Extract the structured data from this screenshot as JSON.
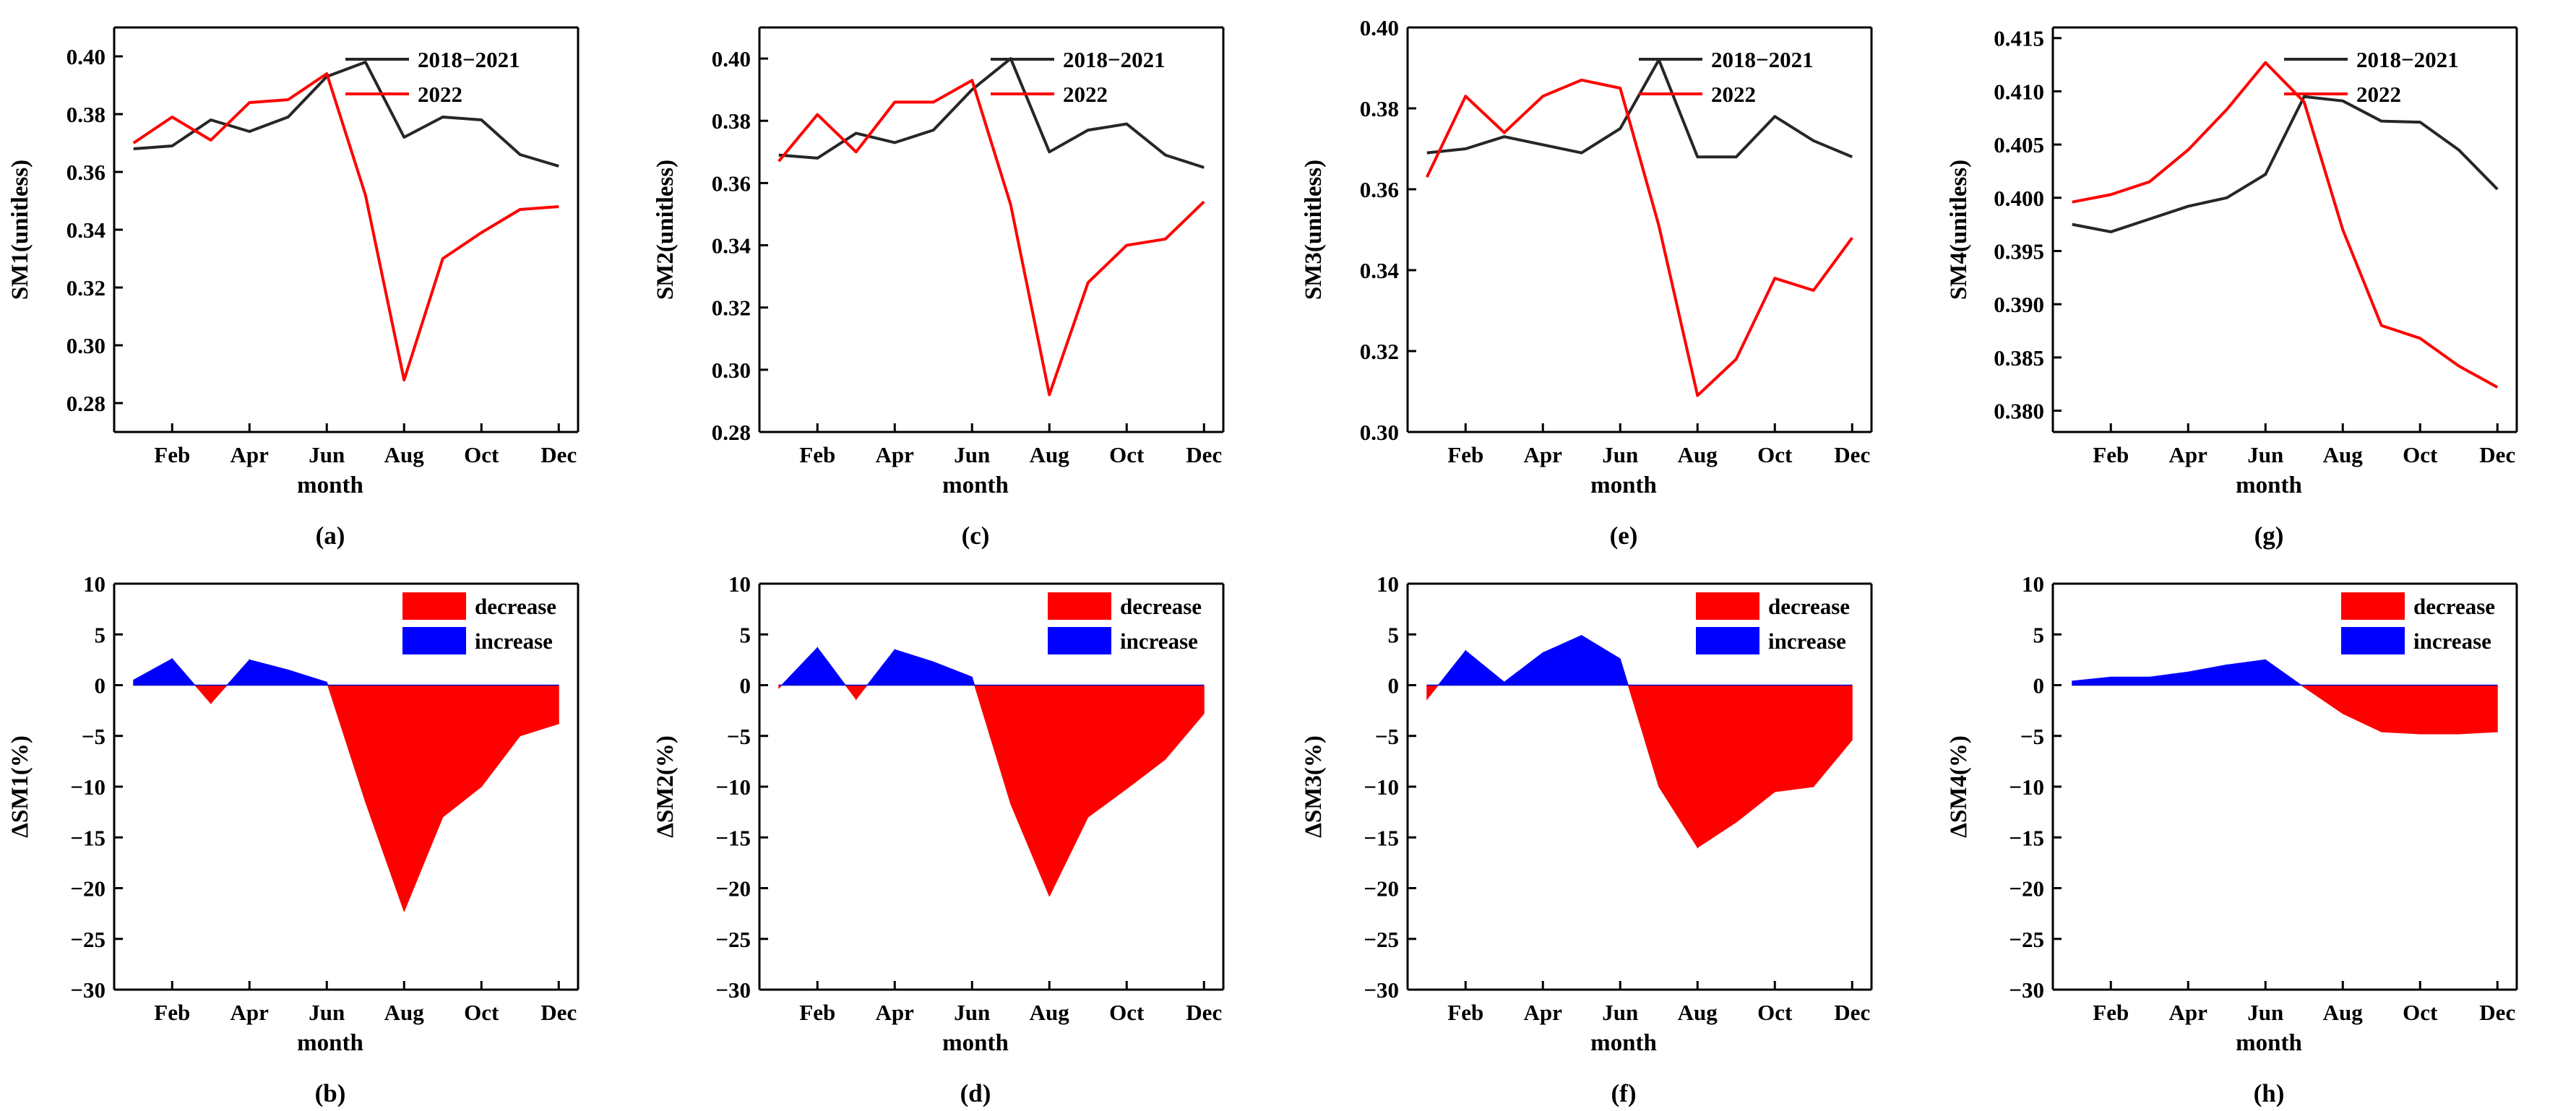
{
  "figure": {
    "x_axis_title": "month",
    "month_tick_labels": [
      "Feb",
      "Apr",
      "Jun",
      "Aug",
      "Oct",
      "Dec"
    ],
    "line_legend": [
      "2018−2021",
      "2022"
    ],
    "delta_legend": [
      "decrease",
      "increase"
    ],
    "colors": {
      "baseline": "#262626",
      "year2022": "#ff0000",
      "decrease": "#ff0000",
      "increase": "#0000ff",
      "axis": "#000000"
    }
  },
  "chart_data": [
    {
      "panel": "(a)",
      "type": "line",
      "ylabel": "SM1(unitless)",
      "xlabel": "month",
      "x": [
        1,
        2,
        3,
        4,
        5,
        6,
        7,
        8,
        9,
        10,
        11,
        12
      ],
      "xticks": [
        2,
        4,
        6,
        8,
        10,
        12
      ],
      "ylim": [
        0.27,
        0.41
      ],
      "yticks": [
        0.28,
        0.3,
        0.32,
        0.34,
        0.36,
        0.38,
        0.4
      ],
      "ytick_labels": [
        "0.28",
        "0.30",
        "0.32",
        "0.34",
        "0.36",
        "0.38",
        "0.40"
      ],
      "series": [
        {
          "name": "2018−2021",
          "values": [
            0.368,
            0.369,
            0.378,
            0.374,
            0.379,
            0.393,
            0.398,
            0.372,
            0.379,
            0.378,
            0.366,
            0.362
          ]
        },
        {
          "name": "2022",
          "values": [
            0.37,
            0.379,
            0.371,
            0.384,
            0.385,
            0.394,
            0.352,
            0.288,
            0.33,
            0.339,
            0.347,
            0.348
          ]
        }
      ]
    },
    {
      "panel": "(b)",
      "type": "area",
      "ylabel": "ΔSM1(%)",
      "xlabel": "month",
      "x": [
        1,
        2,
        3,
        4,
        5,
        6,
        7,
        8,
        9,
        10,
        11,
        12
      ],
      "xticks": [
        2,
        4,
        6,
        8,
        10,
        12
      ],
      "ylim": [
        -30,
        10
      ],
      "yticks": [
        -30,
        -25,
        -20,
        -15,
        -10,
        -5,
        0,
        5,
        10
      ],
      "ytick_labels": [
        "−30",
        "−25",
        "−20",
        "−15",
        "−10",
        "−5",
        "0",
        "5",
        "10"
      ],
      "series": [
        {
          "name": "ΔSM1",
          "values": [
            0.5,
            2.6,
            -1.8,
            2.5,
            1.5,
            0.3,
            -11.5,
            -22.3,
            -13.0,
            -10.0,
            -5.0,
            -3.8
          ]
        }
      ]
    },
    {
      "panel": "(c)",
      "type": "line",
      "ylabel": "SM2(unitless)",
      "xlabel": "month",
      "x": [
        1,
        2,
        3,
        4,
        5,
        6,
        7,
        8,
        9,
        10,
        11,
        12
      ],
      "xticks": [
        2,
        4,
        6,
        8,
        10,
        12
      ],
      "ylim": [
        0.28,
        0.41
      ],
      "yticks": [
        0.28,
        0.3,
        0.32,
        0.34,
        0.36,
        0.38,
        0.4
      ],
      "ytick_labels": [
        "0.28",
        "0.30",
        "0.32",
        "0.34",
        "0.36",
        "0.38",
        "0.40"
      ],
      "series": [
        {
          "name": "2018−2021",
          "values": [
            0.369,
            0.368,
            0.376,
            0.373,
            0.377,
            0.39,
            0.4,
            0.37,
            0.377,
            0.379,
            0.369,
            0.365
          ]
        },
        {
          "name": "2022",
          "values": [
            0.367,
            0.382,
            0.37,
            0.386,
            0.386,
            0.393,
            0.353,
            0.292,
            0.328,
            0.34,
            0.342,
            0.354
          ]
        }
      ]
    },
    {
      "panel": "(d)",
      "type": "area",
      "ylabel": "ΔSM2(%)",
      "xlabel": "month",
      "x": [
        1,
        2,
        3,
        4,
        5,
        6,
        7,
        8,
        9,
        10,
        11,
        12
      ],
      "xticks": [
        2,
        4,
        6,
        8,
        10,
        12
      ],
      "ylim": [
        -30,
        10
      ],
      "yticks": [
        -30,
        -25,
        -20,
        -15,
        -10,
        -5,
        0,
        5,
        10
      ],
      "ytick_labels": [
        "−30",
        "−25",
        "−20",
        "−15",
        "−10",
        "−5",
        "0",
        "5",
        "10"
      ],
      "series": [
        {
          "name": "ΔSM2",
          "values": [
            -0.3,
            3.7,
            -1.4,
            3.5,
            2.3,
            0.8,
            -11.7,
            -20.8,
            -13.0,
            -10.2,
            -7.3,
            -2.8
          ]
        }
      ]
    },
    {
      "panel": "(e)",
      "type": "line",
      "ylabel": "SM3(unitless)",
      "xlabel": "month",
      "x": [
        1,
        2,
        3,
        4,
        5,
        6,
        7,
        8,
        9,
        10,
        11,
        12
      ],
      "xticks": [
        2,
        4,
        6,
        8,
        10,
        12
      ],
      "ylim": [
        0.3,
        0.4
      ],
      "yticks": [
        0.3,
        0.32,
        0.34,
        0.36,
        0.38,
        0.4
      ],
      "ytick_labels": [
        "0.30",
        "0.32",
        "0.34",
        "0.36",
        "0.38",
        "0.40"
      ],
      "series": [
        {
          "name": "2018−2021",
          "values": [
            0.369,
            0.37,
            0.373,
            0.371,
            0.369,
            0.375,
            0.392,
            0.368,
            0.368,
            0.378,
            0.372,
            0.368
          ]
        },
        {
          "name": "2022",
          "values": [
            0.363,
            0.383,
            0.374,
            0.383,
            0.387,
            0.385,
            0.351,
            0.309,
            0.318,
            0.338,
            0.335,
            0.348
          ]
        }
      ]
    },
    {
      "panel": "(f)",
      "type": "area",
      "ylabel": "ΔSM3(%)",
      "xlabel": "month",
      "x": [
        1,
        2,
        3,
        4,
        5,
        6,
        7,
        8,
        9,
        10,
        11,
        12
      ],
      "xticks": [
        2,
        4,
        6,
        8,
        10,
        12
      ],
      "ylim": [
        -30,
        10
      ],
      "yticks": [
        -30,
        -25,
        -20,
        -15,
        -10,
        -5,
        0,
        5,
        10
      ],
      "ytick_labels": [
        "−30",
        "−25",
        "−20",
        "−15",
        "−10",
        "−5",
        "0",
        "5",
        "10"
      ],
      "series": [
        {
          "name": "ΔSM3",
          "values": [
            -1.4,
            3.4,
            0.3,
            3.2,
            4.9,
            2.6,
            -10.0,
            -16.0,
            -13.5,
            -10.5,
            -10.0,
            -5.4
          ]
        }
      ]
    },
    {
      "panel": "(g)",
      "type": "line",
      "ylabel": "SM4(unitless)",
      "xlabel": "month",
      "x": [
        1,
        2,
        3,
        4,
        5,
        6,
        7,
        8,
        9,
        10,
        11,
        12
      ],
      "xticks": [
        2,
        4,
        6,
        8,
        10,
        12
      ],
      "ylim": [
        0.378,
        0.416
      ],
      "yticks": [
        0.38,
        0.385,
        0.39,
        0.395,
        0.4,
        0.405,
        0.41,
        0.415
      ],
      "ytick_labels": [
        "0.380",
        "0.385",
        "0.390",
        "0.395",
        "0.400",
        "0.405",
        "0.410",
        "0.415"
      ],
      "series": [
        {
          "name": "2018−2021",
          "values": [
            0.3975,
            0.3968,
            0.398,
            0.3992,
            0.4,
            0.4022,
            0.4095,
            0.4091,
            0.4072,
            0.4071,
            0.4045,
            0.4008
          ]
        },
        {
          "name": "2022",
          "values": [
            0.3996,
            0.4003,
            0.4015,
            0.4045,
            0.4083,
            0.4127,
            0.409,
            0.397,
            0.388,
            0.3868,
            0.3842,
            0.3822
          ]
        }
      ]
    },
    {
      "panel": "(h)",
      "type": "area",
      "ylabel": "ΔSM4(%)",
      "xlabel": "month",
      "x": [
        1,
        2,
        3,
        4,
        5,
        6,
        7,
        8,
        9,
        10,
        11,
        12
      ],
      "xticks": [
        2,
        4,
        6,
        8,
        10,
        12
      ],
      "ylim": [
        -30,
        10
      ],
      "yticks": [
        -30,
        -25,
        -20,
        -15,
        -10,
        -5,
        0,
        5,
        10
      ],
      "ytick_labels": [
        "−30",
        "−25",
        "−20",
        "−15",
        "−10",
        "−5",
        "0",
        "5",
        "10"
      ],
      "series": [
        {
          "name": "ΔSM4",
          "values": [
            0.4,
            0.8,
            0.8,
            1.3,
            2.0,
            2.5,
            -0.2,
            -2.8,
            -4.6,
            -4.8,
            -4.8,
            -4.6
          ]
        }
      ]
    }
  ]
}
